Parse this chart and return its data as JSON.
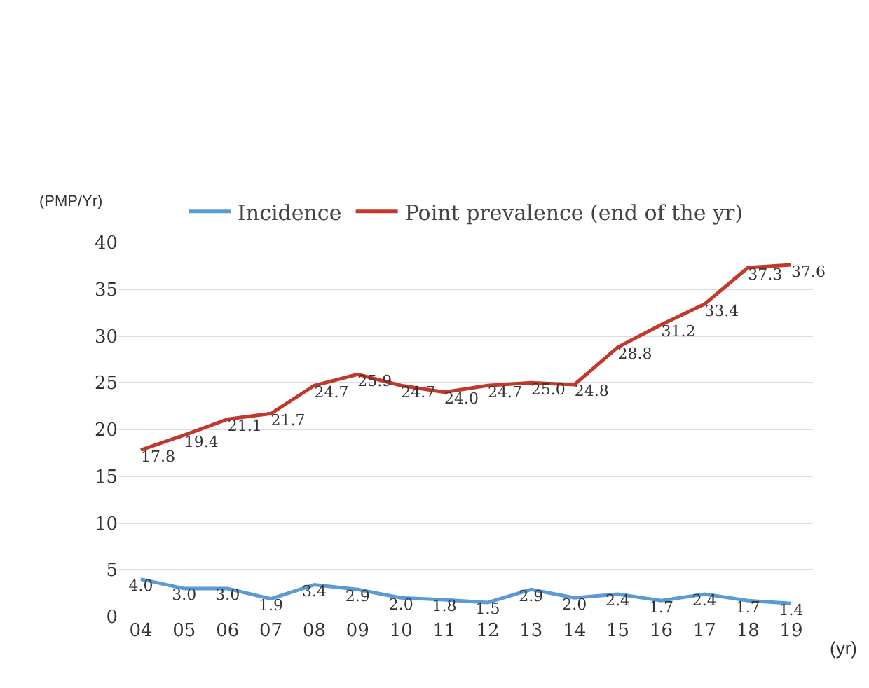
{
  "chart_data": {
    "type": "line",
    "ylabel": "(PMP/Yr)",
    "xlabel": "(yr)",
    "categories": [
      "04",
      "05",
      "06",
      "07",
      "08",
      "09",
      "10",
      "11",
      "12",
      "13",
      "14",
      "15",
      "16",
      "17",
      "18",
      "19"
    ],
    "series": [
      {
        "name": "Incidence",
        "color": "#5b9bd5",
        "values": [
          4.0,
          3.0,
          3.0,
          1.9,
          3.4,
          2.9,
          2.0,
          1.8,
          1.5,
          2.9,
          2.0,
          2.4,
          1.7,
          2.4,
          1.7,
          1.4
        ],
        "value_labels": [
          "4.0",
          "3.0",
          "3.0",
          "1.9",
          "3.4",
          "2.9",
          "2.0",
          "1.8",
          "1.5",
          "2.9",
          "2.0",
          "2.4",
          "1.7",
          "2.4",
          "1.7",
          "1.4"
        ]
      },
      {
        "name": "Point prevalence (end of the yr)",
        "color": "#c0392b",
        "values": [
          17.8,
          19.4,
          21.1,
          21.7,
          24.7,
          25.9,
          24.7,
          24.0,
          24.7,
          25.0,
          24.8,
          28.8,
          31.2,
          33.4,
          37.3,
          37.6
        ],
        "value_labels": [
          "17.8",
          "19.4",
          "21.1",
          "21.7",
          "24.7",
          "25.9",
          "24.7",
          "24.0",
          "24.7",
          "25.0",
          "24.8",
          "28.8",
          "31.2",
          "33.4",
          "37.3",
          "37.6"
        ]
      }
    ],
    "ylim": [
      0,
      40
    ],
    "yticks": [
      0,
      5,
      10,
      15,
      20,
      25,
      30,
      35,
      40
    ],
    "grid": "y",
    "legend": "top",
    "marker": "none",
    "line_style": "solid"
  }
}
